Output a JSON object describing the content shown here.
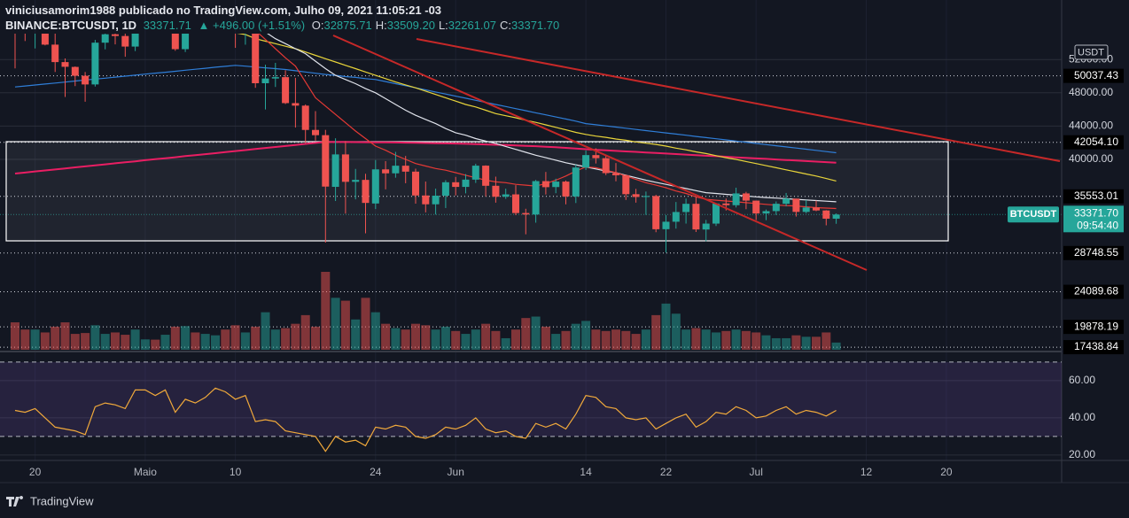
{
  "chart_data": {
    "type": "candlestick",
    "header": {
      "author_line": "viniciusamorim1988 publicado no TradingView.com, Julho 09, 2021 11:05:21 -03",
      "symbol": "BINANCE:BTCUSDT, 1D",
      "price": "33371.71",
      "change": "▲ +496.00 (+1.51%)",
      "ohlc": [
        {
          "key": "O:",
          "value": "32875.71"
        },
        {
          "key": "H:",
          "value": "33509.20"
        },
        {
          "key": "L:",
          "value": "32261.07"
        },
        {
          "key": "C:",
          "value": "33371.70"
        }
      ]
    },
    "categories": [
      null,
      null,
      "20",
      null,
      null,
      null,
      null,
      null,
      null,
      null,
      null,
      null,
      null,
      "Maio",
      null,
      null,
      null,
      null,
      null,
      null,
      null,
      null,
      "10",
      null,
      null,
      null,
      null,
      null,
      null,
      null,
      null,
      null,
      null,
      null,
      null,
      null,
      "24",
      null,
      null,
      null,
      null,
      null,
      null,
      null,
      "Jun",
      null,
      null,
      null,
      null,
      null,
      null,
      null,
      null,
      null,
      null,
      null,
      null,
      "14",
      null,
      null,
      null,
      null,
      null,
      null,
      null,
      "22",
      null,
      null,
      null,
      null,
      null,
      null,
      null,
      null,
      "Jul",
      null,
      null,
      null,
      null,
      null,
      null,
      null,
      null,
      null,
      null,
      "12",
      null,
      null,
      null,
      null,
      null,
      null,
      null,
      "20"
    ],
    "open": [
      60006,
      56150,
      55663,
      56425,
      53787,
      51690,
      51110,
      50047,
      49004,
      54021,
      55033,
      54824,
      53555,
      57697,
      57828,
      56610,
      57213,
      53241,
      57473,
      56428,
      57380,
      58928,
      58280,
      55859,
      56704,
      49150,
      49716,
      49880,
      46760,
      46457,
      43538,
      42910,
      36700,
      40597,
      37304,
      37537,
      34700,
      38800,
      38325,
      39241,
      38529,
      35662,
      34606,
      35641,
      37253,
      36694,
      37568,
      39246,
      36829,
      35516,
      35796,
      33556,
      33380,
      37388,
      36677,
      37331,
      35546,
      39020,
      40516,
      40143,
      38349,
      38099,
      35820,
      35483,
      35600,
      31614,
      32509,
      33675,
      34663,
      31576,
      32283,
      34702,
      34494,
      35911,
      35045,
      33502,
      33786,
      34669,
      35288,
      33690,
      34220,
      33862,
      32875.71,
      null,
      null,
      null,
      null,
      null,
      null,
      null,
      null,
      null,
      null,
      null
    ],
    "high": [
      60499,
      57526,
      57300,
      56757,
      55410,
      52130,
      51167,
      50500,
      54356,
      55454,
      56428,
      55200,
      58000,
      58458,
      57941,
      58981,
      57240,
      57963,
      58360,
      58650,
      59500,
      59300,
      59592,
      56888,
      58000,
      51367,
      51600,
      50700,
      49800,
      46600,
      45800,
      43546,
      42536,
      42200,
      38856,
      38270,
      39920,
      39791,
      40900,
      40411,
      38877,
      37338,
      36488,
      37499,
      37896,
      38225,
      39476,
      39289,
      37925,
      36480,
      36900,
      34068,
      37534,
      38491,
      37680,
      37463,
      39380,
      41064,
      41330,
      40527,
      39560,
      38200,
      36457,
      36137,
      35750,
      33298,
      34881,
      35298,
      35500,
      32730,
      34749,
      35297,
      36600,
      36100,
      35057,
      33977,
      34945,
      35967,
      35293,
      35118,
      35059,
      33900,
      33509.2,
      null,
      null,
      null,
      null,
      null,
      null,
      null,
      null,
      null,
      null,
      null
    ],
    "low": [
      50931,
      54221,
      53329,
      53695,
      50500,
      47500,
      48805,
      46930,
      48753,
      53222,
      53813,
      52330,
      53013,
      57052,
      56035,
      56500,
      53046,
      52900,
      55200,
      55241,
      56975,
      56235,
      53400,
      53780,
      48600,
      46000,
      48700,
      46650,
      43825,
      42001,
      42250,
      30000,
      35000,
      33488,
      35200,
      31111,
      34031,
      36400,
      37800,
      37134,
      34684,
      33632,
      33379,
      34153,
      35666,
      35920,
      37170,
      35555,
      34800,
      35258,
      33300,
      31000,
      32396,
      35782,
      35936,
      34600,
      34757,
      38730,
      39506,
      38116,
      37365,
      35129,
      34803,
      33336,
      31251,
      28805,
      31683,
      32286,
      31275,
      30151,
      32000,
      33862,
      34225,
      34017,
      32711,
      32699,
      33316,
      34357,
      33125,
      33532,
      33777,
      32077,
      32261.07,
      null,
      null,
      null,
      null,
      null,
      null,
      null,
      null,
      null,
      null,
      null
    ],
    "close": [
      56150,
      55633,
      56425,
      53787,
      51690,
      51125,
      50047,
      49004,
      54021,
      55033,
      54824,
      53555,
      57750,
      57828,
      56610,
      57213,
      53241,
      57473,
      56428,
      57380,
      58928,
      58280,
      55859,
      56704,
      49150,
      49716,
      49880,
      46760,
      46457,
      43538,
      42910,
      36732,
      40597,
      37304,
      37537,
      34770,
      38800,
      38325,
      39241,
      38529,
      35663,
      34606,
      35641,
      37253,
      36694,
      37569,
      39246,
      36829,
      35513,
      35796,
      33552,
      33380,
      37389,
      36662,
      37331,
      35546,
      39020,
      40516,
      40144,
      38349,
      38092,
      35820,
      35483,
      35600,
      31608,
      32510,
      33678,
      34663,
      31584,
      32283,
      34700,
      34494,
      35911,
      35045,
      33504,
      33786,
      34669,
      35287,
      33690,
      34220,
      33862,
      32875,
      33371.7,
      null,
      null,
      null,
      null,
      null,
      null,
      null,
      null,
      null,
      null,
      null
    ],
    "volume": [
      95,
      70,
      70,
      60,
      80,
      95,
      55,
      58,
      85,
      55,
      60,
      52,
      70,
      36,
      35,
      52,
      80,
      82,
      60,
      55,
      50,
      70,
      85,
      60,
      80,
      130,
      70,
      75,
      90,
      120,
      80,
      270,
      180,
      170,
      105,
      180,
      130,
      90,
      75,
      70,
      90,
      85,
      70,
      80,
      65,
      55,
      70,
      90,
      65,
      40,
      70,
      110,
      115,
      80,
      55,
      65,
      90,
      100,
      70,
      65,
      70,
      65,
      55,
      70,
      120,
      160,
      125,
      70,
      75,
      70,
      60,
      65,
      70,
      65,
      60,
      50,
      40,
      40,
      50,
      45,
      45,
      60,
      25,
      null,
      null,
      null,
      null,
      null,
      null,
      null,
      null,
      null,
      null,
      null
    ],
    "ylim": [
      17128,
      59149
    ],
    "yticks": [
      {
        "value": 52000,
        "label": "52000.00"
      },
      {
        "value": 48000,
        "label": "48000.00"
      },
      {
        "value": 44000,
        "label": "44000.00"
      },
      {
        "value": 40000,
        "label": "40000.00"
      }
    ],
    "levels": [
      50037.43,
      {
        "value": 42054.1,
        "label": "42054.10"
      },
      35553.01,
      28748.55,
      24089.68,
      19878.19,
      17438.84
    ],
    "last_price": {
      "value": 33371.7,
      "label": "33371.70"
    },
    "countdown": "09:54:40",
    "symbol_tag": "BTCUSDT",
    "currency": "USDT",
    "up_color": "#26a69a",
    "down_color": "#ef5350",
    "ma": [
      {
        "color": "#2f7ed8",
        "values": [
          48700,
          48820,
          48940,
          49050,
          49170,
          49290,
          49410,
          49530,
          49650,
          49760,
          49880,
          50000,
          50120,
          50240,
          50360,
          50470,
          50590,
          50710,
          50830,
          50950,
          51070,
          51180,
          51300,
          51200,
          51100,
          51000,
          50900,
          50800,
          50650,
          50500,
          50350,
          50200,
          50100,
          49950,
          49850,
          49700,
          49600,
          49350,
          49100,
          48850,
          48600,
          48350,
          48100,
          47850,
          47600,
          47350,
          47100,
          46850,
          46600,
          46350,
          46100,
          45850,
          45600,
          45350,
          45100,
          44850,
          44600,
          44300,
          44160,
          44020,
          43880,
          43740,
          43600,
          43460,
          43320,
          43180,
          43040,
          42900,
          42760,
          42620,
          42480,
          42340,
          42200,
          42060,
          41920,
          41780,
          41640,
          41500,
          41360,
          41220,
          41080,
          40940,
          40800,
          null,
          null,
          null,
          null,
          null,
          null,
          null,
          null,
          null,
          null,
          null
        ]
      },
      {
        "color": "#e91e63",
        "values": [
          38300,
          38420,
          38550,
          38670,
          38790,
          38910,
          39040,
          39160,
          39280,
          39400,
          39530,
          39650,
          39770,
          39900,
          40020,
          40140,
          40260,
          40390,
          40510,
          40630,
          40750,
          40880,
          41000,
          41120,
          41240,
          41370,
          41490,
          41610,
          41730,
          41860,
          41980,
          42100,
          42090,
          42080,
          42070,
          42060,
          42050,
          42040,
          42030,
          42010,
          41990,
          41970,
          41950,
          41930,
          41900,
          41870,
          41840,
          41800,
          41760,
          41720,
          41680,
          41630,
          41580,
          41520,
          41460,
          41380,
          41300,
          41220,
          41150,
          41090,
          41020,
          40960,
          40900,
          40830,
          40770,
          40700,
          40640,
          40570,
          40510,
          40440,
          40380,
          40320,
          40250,
          40190,
          40120,
          40060,
          39990,
          39930,
          39860,
          39800,
          39730,
          39670,
          39600,
          null,
          null,
          null,
          null,
          null,
          null,
          null,
          null,
          null,
          null,
          null
        ]
      },
      {
        "color": "#e8d43a",
        "values": [
          55200,
          55300,
          55400,
          55500,
          55600,
          55650,
          55700,
          55750,
          55800,
          55850,
          55900,
          55900,
          55950,
          55950,
          56000,
          56000,
          56000,
          55950,
          55900,
          55800,
          55700,
          55500,
          55200,
          55000,
          54500,
          54200,
          53900,
          53600,
          53300,
          52900,
          52500,
          52100,
          51700,
          51300,
          50900,
          50500,
          50100,
          49700,
          49300,
          48950,
          48600,
          48200,
          47800,
          47400,
          47000,
          46600,
          46300,
          45900,
          45500,
          45250,
          45000,
          44700,
          44450,
          44150,
          43850,
          43550,
          43250,
          43000,
          42800,
          42650,
          42450,
          42300,
          42100,
          41950,
          41800,
          41600,
          41350,
          41150,
          40900,
          40700,
          40450,
          40200,
          40000,
          39750,
          39500,
          39250,
          39000,
          38750,
          38500,
          38250,
          38000,
          37700,
          37400,
          null,
          null,
          null,
          null,
          null,
          null,
          null,
          null,
          null,
          null,
          null
        ]
      },
      {
        "color": "#e0e3eb",
        "values": [
          56500,
          56400,
          56300,
          56200,
          56100,
          56000,
          55900,
          55800,
          55700,
          55700,
          55600,
          55600,
          55600,
          55700,
          55700,
          55800,
          55900,
          56000,
          56100,
          56200,
          56300,
          56300,
          56200,
          56000,
          55700,
          55300,
          54500,
          53900,
          53300,
          52700,
          51800,
          50900,
          50100,
          49600,
          49100,
          48500,
          48000,
          47300,
          46600,
          45900,
          45300,
          44800,
          44300,
          43700,
          43200,
          42900,
          42500,
          42200,
          41900,
          41550,
          41200,
          40850,
          40500,
          40200,
          39900,
          39600,
          39350,
          39100,
          38850,
          38600,
          38400,
          38100,
          37800,
          37500,
          37250,
          37000,
          36750,
          36500,
          36250,
          36000,
          35900,
          35800,
          35700,
          35600,
          35500,
          35420,
          35350,
          35280,
          35200,
          35130,
          35050,
          34980,
          34900,
          null,
          null,
          null,
          null,
          null,
          null,
          null,
          null,
          null,
          null,
          null
        ]
      },
      {
        "color": "#e53935",
        "values": [
          57500,
          57200,
          56800,
          56300,
          55800,
          55500,
          55300,
          55300,
          55400,
          55600,
          55800,
          56000,
          56200,
          56500,
          56700,
          56900,
          57000,
          57100,
          57200,
          57300,
          57300,
          57200,
          56900,
          56500,
          55500,
          54400,
          53300,
          52200,
          51200,
          49300,
          47400,
          46400,
          45400,
          44400,
          43400,
          42500,
          41600,
          41100,
          40500,
          40000,
          39500,
          39200,
          38900,
          38700,
          38400,
          38100,
          37800,
          37500,
          37300,
          37200,
          37000,
          36900,
          36800,
          37100,
          37500,
          38000,
          38600,
          39100,
          39000,
          38700,
          38400,
          38000,
          37600,
          37200,
          36900,
          36600,
          36200,
          35900,
          35500,
          35200,
          35100,
          35000,
          34900,
          34800,
          34700,
          34600,
          34500,
          34450,
          34400,
          34300,
          34200,
          34150,
          34100,
          null,
          null,
          null,
          null,
          null,
          null,
          null,
          null,
          null,
          null,
          null
        ]
      }
    ],
    "rsi": {
      "color": "#f0a93b",
      "values": [
        44,
        43,
        45,
        40,
        35,
        34,
        33,
        31,
        46,
        48,
        47,
        45,
        55,
        55,
        52,
        55,
        43,
        50,
        48,
        51,
        56,
        54,
        50,
        52,
        38,
        39,
        38,
        33,
        32,
        31,
        30,
        22,
        30,
        27,
        28,
        25,
        35,
        34,
        36,
        35,
        30,
        29,
        31,
        35,
        34,
        36,
        40,
        34,
        32,
        33,
        30,
        29,
        37,
        35,
        37,
        34,
        42,
        52,
        51,
        46,
        45,
        40,
        39,
        40,
        34,
        37,
        40,
        42,
        35,
        38,
        43,
        42,
        46,
        44,
        40,
        41,
        44,
        46,
        42,
        44,
        43,
        41,
        44,
        null,
        null,
        null,
        null,
        null,
        null,
        null,
        null,
        null,
        null,
        null
      ],
      "ylim": [
        17.1,
        75.2
      ],
      "yticks": [
        {
          "value": 60,
          "label": "60.00"
        },
        {
          "value": 40,
          "label": "40.00"
        },
        {
          "value": 20,
          "label": "20.00"
        }
      ],
      "bands": [
        30,
        70
      ]
    },
    "logo": "TradingView"
  }
}
